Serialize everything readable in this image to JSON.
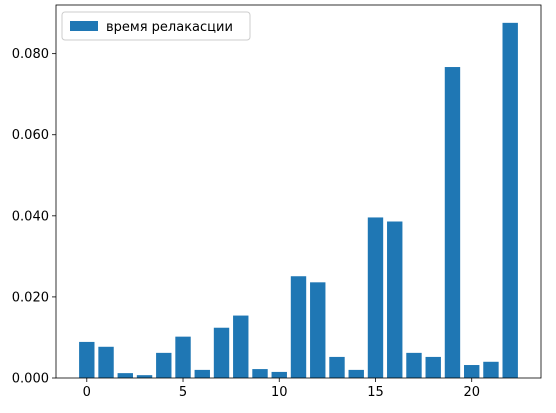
{
  "chart_data": {
    "type": "bar",
    "x": [
      0,
      1,
      2,
      3,
      4,
      5,
      6,
      7,
      8,
      9,
      10,
      11,
      12,
      13,
      14,
      15,
      16,
      17,
      18,
      19,
      20,
      21,
      22
    ],
    "values": [
      0.0089,
      0.0077,
      0.0012,
      0.0007,
      0.0062,
      0.0102,
      0.002,
      0.0124,
      0.0154,
      0.0022,
      0.0015,
      0.0251,
      0.0236,
      0.0052,
      0.002,
      0.0396,
      0.0386,
      0.0062,
      0.0052,
      0.0767,
      0.0032,
      0.004,
      0.0876
    ],
    "series": [
      {
        "name": "время релакасции"
      }
    ],
    "color": "#1f77b4",
    "xlim": [
      -1.6,
      23.6
    ],
    "ylim": [
      0,
      0.092
    ],
    "xticks": [
      0,
      5,
      10,
      15,
      20
    ],
    "xtick_labels": [
      "0",
      "5",
      "10",
      "15",
      "20"
    ],
    "yticks": [
      0,
      0.02,
      0.04,
      0.06,
      0.08
    ],
    "ytick_labels": [
      "0.000",
      "0.020",
      "0.040",
      "0.060",
      "0.080"
    ],
    "legend_position": "upper-left",
    "grid": false,
    "title": "",
    "xlabel": "",
    "ylabel": ""
  }
}
